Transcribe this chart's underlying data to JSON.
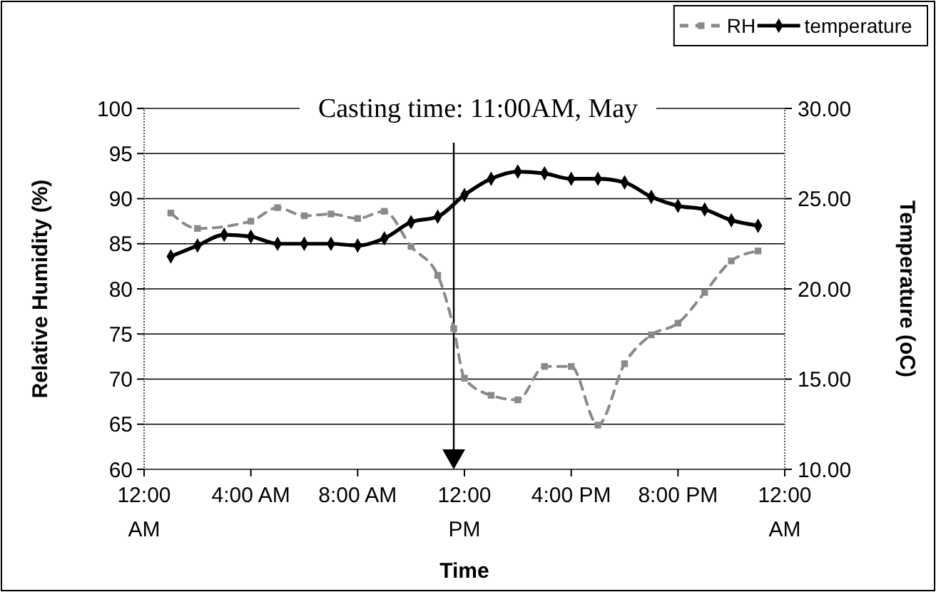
{
  "chart_data": {
    "type": "line",
    "title": "Casting time: 11:00AM, May",
    "xlabel": "Time",
    "ylabel": "Relative Humidity (%)",
    "y2label": "Temperature (oC)",
    "xlim": [
      0,
      24
    ],
    "xticks": [
      {
        "value": 0,
        "label": "12:00 AM"
      },
      {
        "value": 4,
        "label": "4:00 AM"
      },
      {
        "value": 8,
        "label": "8:00 AM"
      },
      {
        "value": 12,
        "label": "12:00 PM"
      },
      {
        "value": 16,
        "label": "4:00 PM"
      },
      {
        "value": 20,
        "label": "8:00 PM"
      },
      {
        "value": 24,
        "label": "12:00 AM"
      }
    ],
    "ylim": [
      60,
      100
    ],
    "yticks": [
      60,
      65,
      70,
      75,
      80,
      85,
      90,
      95,
      100
    ],
    "y2lim": [
      10,
      30
    ],
    "y2ticks": [
      {
        "value": 10,
        "label": "10.00"
      },
      {
        "value": 15,
        "label": "15.00"
      },
      {
        "value": 20,
        "label": "20.00"
      },
      {
        "value": 25,
        "label": "25.00"
      },
      {
        "value": 30,
        "label": "30.00"
      }
    ],
    "grid": "y",
    "legend": "top right",
    "ref_lines": [
      {
        "axis": "x",
        "value": 11.6,
        "label": null,
        "color": "#000000"
      }
    ],
    "series": [
      {
        "name": "RH",
        "color": "#8a8a8a",
        "marker": "square",
        "line_style": "dashed",
        "x": [
          1,
          2,
          3,
          4,
          5,
          6,
          7,
          8,
          9,
          10,
          11,
          11.6,
          12,
          13,
          14,
          15,
          16,
          17,
          18,
          19,
          20,
          21,
          22,
          23
        ],
        "values": [
          88.4,
          86.7,
          null,
          87.5,
          89.0,
          88.1,
          88.3,
          87.8,
          88.6,
          84.7,
          81.5,
          75.6,
          70.1,
          68.2,
          67.7,
          71.4,
          71.4,
          64.9,
          71.7,
          74.9,
          76.2,
          79.6,
          83.1,
          84.2
        ]
      },
      {
        "name": "temperature",
        "color": "#000000",
        "marker": "diamond",
        "line_style": "solid",
        "axis": "y2",
        "x": [
          1,
          2,
          3,
          4,
          5,
          6,
          7,
          8,
          9,
          10,
          11,
          12,
          13,
          14,
          15,
          16,
          17,
          18,
          19,
          20,
          21,
          22,
          23
        ],
        "values": [
          21.8,
          22.4,
          23.0,
          22.9,
          22.5,
          22.5,
          22.5,
          22.4,
          22.8,
          23.7,
          24.0,
          25.2,
          26.1,
          26.5,
          26.4,
          26.1,
          26.1,
          25.9,
          25.1,
          24.6,
          24.4,
          23.8,
          23.5
        ]
      }
    ]
  }
}
